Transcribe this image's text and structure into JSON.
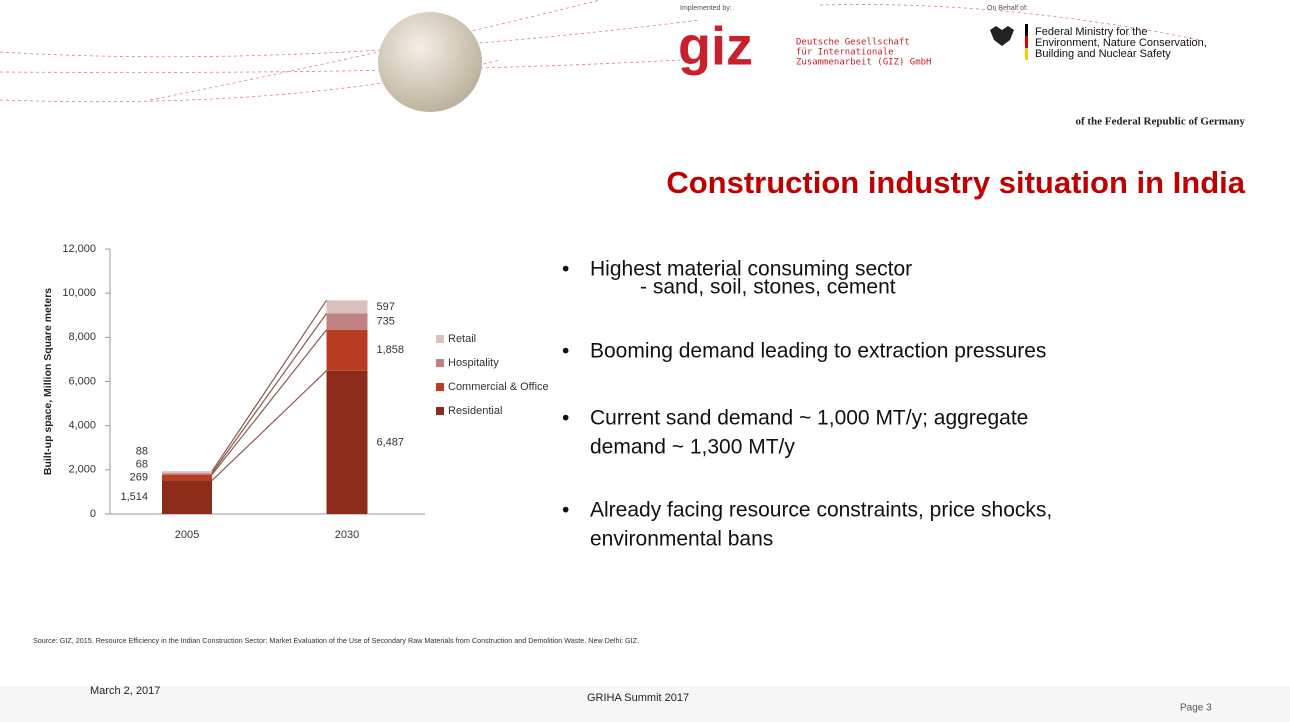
{
  "header": {
    "implemented_by": "Implemented by:",
    "giz_logo": "giz",
    "giz_name": [
      "Deutsche Gesellschaft",
      "für Internationale",
      "Zusammenarbeit (GIZ) GmbH"
    ],
    "on_behalf_of": "On Behalf of:",
    "ministry": [
      "Federal Ministry for the",
      "Environment, Nature Conservation,",
      "Building and Nuclear Safety"
    ],
    "republic": "of the Federal Republic of Germany"
  },
  "title": "Construction industry situation in India",
  "bullets": [
    {
      "bullet": "•",
      "lines": [
        "Highest material consuming sector"
      ],
      "sub": "- sand, soil, stones, cement"
    },
    {
      "bullet": "•",
      "lines": [
        "Booming demand leading to extraction pressures"
      ]
    },
    {
      "bullet": "•",
      "lines": [
        "Current sand demand ~ 1,000 MT/y; aggregate",
        "demand ~ 1,300 MT/y"
      ]
    },
    {
      "bullet": "•",
      "lines": [
        "Already facing resource constraints, price shocks,",
        "environmental bans"
      ]
    }
  ],
  "chart_data": {
    "type": "stacked_bar",
    "y_label": "Built-up space, Million Square meters",
    "categories": [
      "2005",
      "2030"
    ],
    "series": [
      {
        "name": "Residential",
        "color": "#8c2d1c",
        "values": [
          1514,
          6487
        ],
        "value_labels": [
          "1,514",
          "6,487"
        ]
      },
      {
        "name": "Commercial & Office",
        "color": "#b83c22",
        "values": [
          269,
          1858
        ],
        "value_labels": [
          "269",
          "1,858"
        ]
      },
      {
        "name": "Hospitality",
        "color": "#c08283",
        "values": [
          68,
          735
        ]
      },
      {
        "name": "Retail",
        "color": "#dcc0c0",
        "values": [
          88,
          597
        ]
      }
    ],
    "ylim": [
      0,
      12000
    ],
    "yticks": [
      0,
      {
        "value": 2000,
        "label": "2,000"
      },
      {
        "value": 4000,
        "label": "4,000"
      },
      {
        "value": 6000,
        "label": "6,000"
      },
      {
        "value": 8000,
        "label": "8,000"
      },
      {
        "value": 10000,
        "label": "10,000"
      },
      {
        "value": 12000,
        "label": "12,000"
      }
    ]
  },
  "source": "Source: GIZ, 2015. Resource Efficiency in the Indian Construction Sector: Market Evaluation of the Use of Secondary Raw Materials from Construction and Demolition Waste. New Delhi: GIZ.",
  "footer": {
    "date": "March 2, 2017",
    "event": "GRIHA Summit 2017",
    "page": "Page 3"
  }
}
